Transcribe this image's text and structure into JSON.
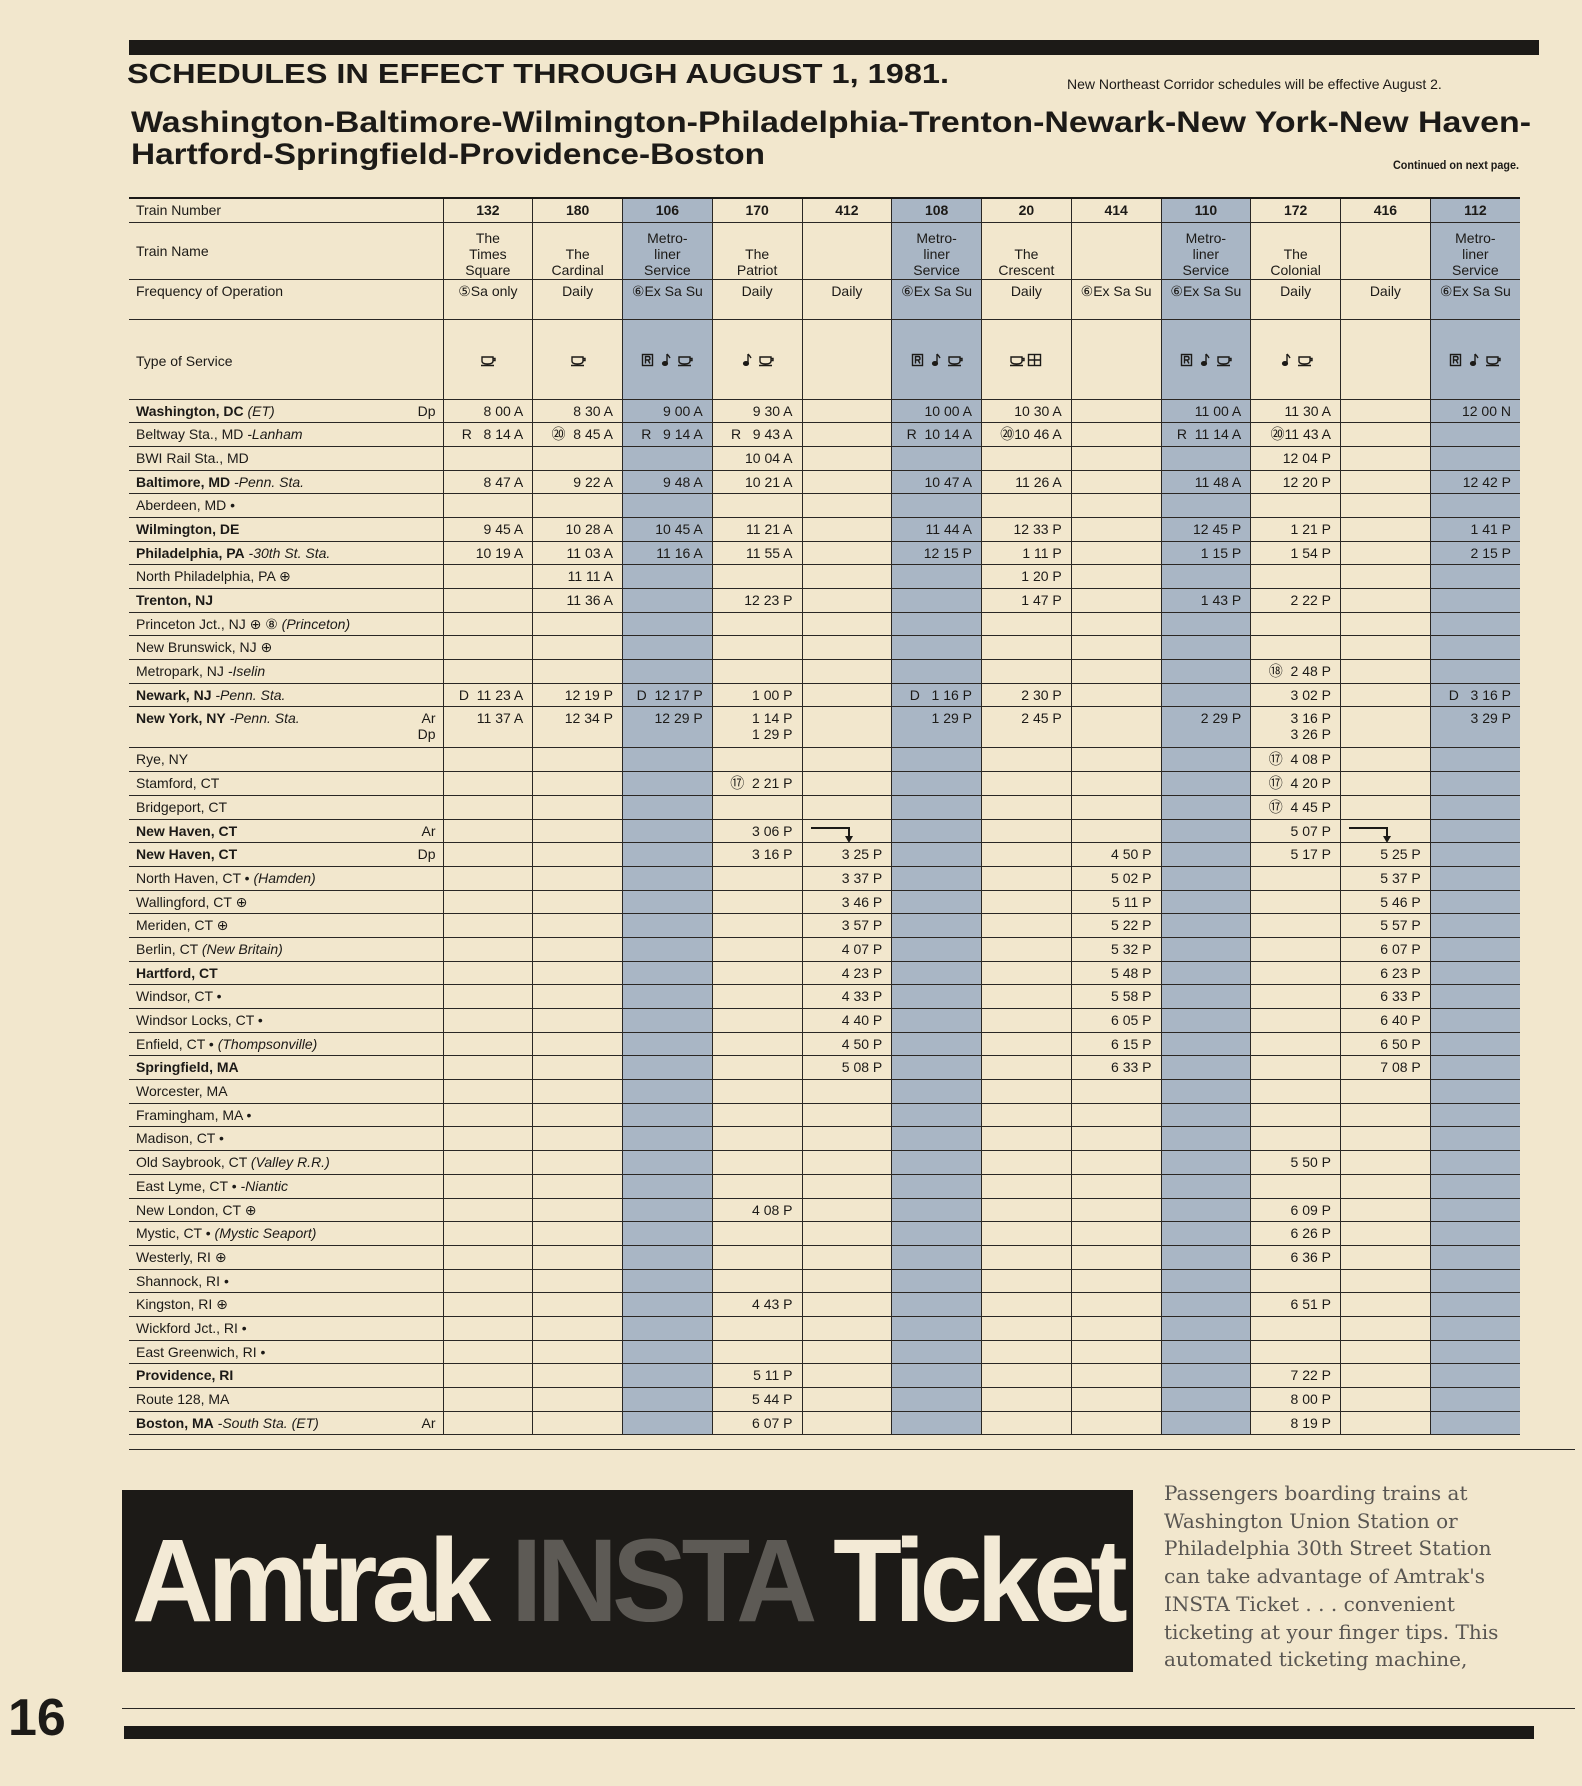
{
  "header": {
    "title": "SCHEDULES IN EFFECT THROUGH AUGUST 1, 1981.",
    "note": "New Northeast Corridor schedules will be effective August 2.",
    "route_line1": "Washington-Baltimore-Wilmington-Philadelphia-Trenton-Newark-New York-New Haven-",
    "route_line2": "Hartford-Springfield-Providence-Boston",
    "continued": "Continued on next page."
  },
  "table": {
    "row_labels": [
      "Train Number",
      "Train Name",
      "Frequency of Operation",
      "Type of Service"
    ],
    "trains": [
      {
        "number": "132",
        "name": "The\nTimes\nSquare",
        "frequency": "⑤Sa only"
      },
      {
        "number": "180",
        "name": "The\nCardinal",
        "frequency": "Daily"
      },
      {
        "number": "106",
        "name": "Metro-\nliner\nService",
        "frequency": "⑥Ex Sa Su",
        "shaded": true
      },
      {
        "number": "170",
        "name": "The\nPatriot",
        "frequency": "Daily"
      },
      {
        "number": "412",
        "name": null,
        "frequency": "Daily"
      },
      {
        "number": "108",
        "name": "Metro-\nliner\nService",
        "frequency": "⑥Ex Sa Su",
        "shaded": true
      },
      {
        "number": "20",
        "name": "The\nCrescent",
        "frequency": "Daily"
      },
      {
        "number": "414",
        "name": null,
        "frequency": "⑥Ex Sa Su"
      },
      {
        "number": "110",
        "name": "Metro-\nliner\nService",
        "frequency": "⑥Ex Sa Su",
        "shaded": true
      },
      {
        "number": "172",
        "name": "The\nColonial",
        "frequency": "Daily"
      },
      {
        "number": "416",
        "name": null,
        "frequency": "Daily"
      },
      {
        "number": "112",
        "name": "Metro-\nliner\nService",
        "frequency": "⑥Ex Sa Su",
        "shaded": true
      }
    ],
    "stations": [
      {
        "name": "Washington, DC",
        "note": "(ET)",
        "ad": "Dp",
        "bold": true,
        "times": [
          "8 00 A",
          "8 30 A",
          "9 00 A",
          "9 30 A",
          null,
          "10 00 A",
          "10 30 A",
          null,
          "11 00 A",
          "11 30 A",
          null,
          "12 00 N"
        ]
      },
      {
        "name": "Beltway Sta., MD",
        "note": "-Lanham",
        "times": [
          "R   8 14 A",
          "⑳  8 45 A",
          "R   9 14 A",
          "R   9 43 A",
          null,
          "R  10 14 A",
          "⑳10 46 A",
          null,
          "R  11 14 A",
          "⑳11 43 A",
          null,
          null
        ]
      },
      {
        "name": "BWI Rail Sta., MD",
        "times": [
          null,
          null,
          null,
          "10 04 A",
          null,
          null,
          null,
          null,
          null,
          "12 04 P",
          null,
          null
        ]
      },
      {
        "name": "Baltimore, MD",
        "note": "-Penn. Sta.",
        "bold": true,
        "times": [
          "8 47 A",
          "9 22 A",
          "9 48 A",
          "10 21 A",
          null,
          "10 47 A",
          "11 26 A",
          null,
          "11 48 A",
          "12 20 P",
          null,
          "12 42 P"
        ]
      },
      {
        "name": "Aberdeen, MD •",
        "times": [
          null,
          null,
          null,
          null,
          null,
          null,
          null,
          null,
          null,
          null,
          null,
          null
        ]
      },
      {
        "name": "Wilmington, DE",
        "bold": true,
        "times": [
          "9 45 A",
          "10 28 A",
          "10 45 A",
          "11 21 A",
          null,
          "11 44 A",
          "12 33 P",
          null,
          "12 45 P",
          "1 21 P",
          null,
          "1 41 P"
        ]
      },
      {
        "name": "Philadelphia, PA",
        "note": "-30th St. Sta.",
        "bold": true,
        "times": [
          "10 19 A",
          "11 03 A",
          "11 16 A",
          "11 55 A",
          null,
          "12 15 P",
          "1 11 P",
          null,
          "1 15 P",
          "1 54 P",
          null,
          "2 15 P"
        ]
      },
      {
        "name": "North Philadelphia, PA ⊕",
        "times": [
          null,
          "11 11 A",
          null,
          null,
          null,
          null,
          "1 20 P",
          null,
          null,
          null,
          null,
          null
        ]
      },
      {
        "name": "Trenton, NJ",
        "bold": true,
        "times": [
          null,
          "11 36 A",
          null,
          "12 23 P",
          null,
          null,
          "1 47 P",
          null,
          "1 43 P",
          "2 22 P",
          null,
          null
        ]
      },
      {
        "name": "Princeton Jct., NJ ⊕ ⑧",
        "note": "(Princeton)",
        "times": [
          null,
          null,
          null,
          null,
          null,
          null,
          null,
          null,
          null,
          null,
          null,
          null
        ]
      },
      {
        "name": "New Brunswick, NJ ⊕",
        "times": [
          null,
          null,
          null,
          null,
          null,
          null,
          null,
          null,
          null,
          null,
          null,
          null
        ]
      },
      {
        "name": "Metropark, NJ",
        "note": "-Iselin",
        "times": [
          null,
          null,
          null,
          null,
          null,
          null,
          null,
          null,
          null,
          "⑱  2 48 P",
          null,
          null
        ]
      },
      {
        "name": "Newark, NJ",
        "note": "-Penn. Sta.",
        "bold": true,
        "times": [
          "D  11 23 A",
          "12 19 P",
          "D  12 17 P",
          "1 00 P",
          null,
          "D   1 16 P",
          "2 30 P",
          null,
          null,
          "3 02 P",
          null,
          "D   3 16 P"
        ]
      },
      {
        "name": "New York, NY",
        "note": "-Penn. Sta.",
        "ad": "Ar\nDp",
        "bold": true,
        "times": [
          "11 37 A",
          "12 34 P",
          "12 29 P",
          "1 14 P\n1 29 P",
          null,
          "1 29 P",
          "2 45 P",
          null,
          "2 29 P",
          "3 16 P\n3 26 P",
          null,
          "3 29 P"
        ]
      },
      {
        "name": "Rye, NY",
        "times": [
          null,
          null,
          null,
          null,
          null,
          null,
          null,
          null,
          null,
          "⑰  4 08 P",
          null,
          null
        ]
      },
      {
        "name": "Stamford, CT",
        "times": [
          null,
          null,
          null,
          "⑰  2 21 P",
          null,
          null,
          null,
          null,
          null,
          "⑰  4 20 P",
          null,
          null
        ]
      },
      {
        "name": "Bridgeport, CT",
        "times": [
          null,
          null,
          null,
          null,
          null,
          null,
          null,
          null,
          null,
          "⑰  4 45 P",
          null,
          null
        ]
      },
      {
        "name": "New Haven, CT",
        "ad": "Ar",
        "bold": true,
        "times": [
          null,
          null,
          null,
          "3 06 P",
          null,
          null,
          null,
          null,
          null,
          "5 07 P",
          null,
          null
        ]
      },
      {
        "name": "New Haven, CT",
        "ad": "Dp",
        "bold": true,
        "times": [
          null,
          null,
          null,
          "3 16 P",
          "3 25 P",
          null,
          null,
          "4 50 P",
          null,
          "5 17 P",
          "5 25 P",
          null
        ]
      },
      {
        "name": "North Haven, CT •",
        "note": "(Hamden)",
        "times": [
          null,
          null,
          null,
          null,
          "3 37 P",
          null,
          null,
          "5 02 P",
          null,
          null,
          "5 37 P",
          null
        ]
      },
      {
        "name": "Wallingford, CT ⊕",
        "times": [
          null,
          null,
          null,
          null,
          "3 46 P",
          null,
          null,
          "5 11 P",
          null,
          null,
          "5 46 P",
          null
        ]
      },
      {
        "name": "Meriden, CT ⊕",
        "times": [
          null,
          null,
          null,
          null,
          "3 57 P",
          null,
          null,
          "5 22 P",
          null,
          null,
          "5 57 P",
          null
        ]
      },
      {
        "name": "Berlin, CT",
        "note": "(New Britain)",
        "times": [
          null,
          null,
          null,
          null,
          "4 07 P",
          null,
          null,
          "5 32 P",
          null,
          null,
          "6 07 P",
          null
        ]
      },
      {
        "name": "Hartford, CT",
        "bold": true,
        "times": [
          null,
          null,
          null,
          null,
          "4 23 P",
          null,
          null,
          "5 48 P",
          null,
          null,
          "6 23 P",
          null
        ]
      },
      {
        "name": "Windsor, CT •",
        "times": [
          null,
          null,
          null,
          null,
          "4 33 P",
          null,
          null,
          "5 58 P",
          null,
          null,
          "6 33 P",
          null
        ]
      },
      {
        "name": "Windsor Locks, CT •",
        "times": [
          null,
          null,
          null,
          null,
          "4 40 P",
          null,
          null,
          "6 05 P",
          null,
          null,
          "6 40 P",
          null
        ]
      },
      {
        "name": "Enfield, CT •",
        "note": "(Thompsonville)",
        "times": [
          null,
          null,
          null,
          null,
          "4 50 P",
          null,
          null,
          "6 15 P",
          null,
          null,
          "6 50 P",
          null
        ]
      },
      {
        "name": "Springfield, MA",
        "bold": true,
        "times": [
          null,
          null,
          null,
          null,
          "5 08 P",
          null,
          null,
          "6 33 P",
          null,
          null,
          "7 08 P",
          null
        ]
      },
      {
        "name": "Worcester, MA",
        "times": [
          null,
          null,
          null,
          null,
          null,
          null,
          null,
          null,
          null,
          null,
          null,
          null
        ]
      },
      {
        "name": "Framingham, MA •",
        "times": [
          null,
          null,
          null,
          null,
          null,
          null,
          null,
          null,
          null,
          null,
          null,
          null
        ]
      },
      {
        "name": "Madison, CT •",
        "times": [
          null,
          null,
          null,
          null,
          null,
          null,
          null,
          null,
          null,
          null,
          null,
          null
        ]
      },
      {
        "name": "Old Saybrook, CT",
        "note": "(Valley R.R.)",
        "times": [
          null,
          null,
          null,
          null,
          null,
          null,
          null,
          null,
          null,
          "5 50 P",
          null,
          null
        ]
      },
      {
        "name": "East Lyme, CT •",
        "note": "-Niantic",
        "times": [
          null,
          null,
          null,
          null,
          null,
          null,
          null,
          null,
          null,
          null,
          null,
          null
        ]
      },
      {
        "name": "New London, CT ⊕",
        "times": [
          null,
          null,
          null,
          "4 08 P",
          null,
          null,
          null,
          null,
          null,
          "6 09 P",
          null,
          null
        ]
      },
      {
        "name": "Mystic, CT •",
        "note": "(Mystic Seaport)",
        "times": [
          null,
          null,
          null,
          null,
          null,
          null,
          null,
          null,
          null,
          "6 26 P",
          null,
          null
        ]
      },
      {
        "name": "Westerly, RI ⊕",
        "times": [
          null,
          null,
          null,
          null,
          null,
          null,
          null,
          null,
          null,
          "6 36 P",
          null,
          null
        ]
      },
      {
        "name": "Shannock, RI •",
        "times": [
          null,
          null,
          null,
          null,
          null,
          null,
          null,
          null,
          null,
          null,
          null,
          null
        ]
      },
      {
        "name": "Kingston, RI ⊕",
        "times": [
          null,
          null,
          null,
          "4 43 P",
          null,
          null,
          null,
          null,
          null,
          "6 51 P",
          null,
          null
        ]
      },
      {
        "name": "Wickford Jct., RI •",
        "times": [
          null,
          null,
          null,
          null,
          null,
          null,
          null,
          null,
          null,
          null,
          null,
          null
        ]
      },
      {
        "name": "East Greenwich, RI •",
        "times": [
          null,
          null,
          null,
          null,
          null,
          null,
          null,
          null,
          null,
          null,
          null,
          null
        ]
      },
      {
        "name": "Providence, RI",
        "bold": true,
        "times": [
          null,
          null,
          null,
          "5 11 P",
          null,
          null,
          null,
          null,
          null,
          "7 22 P",
          null,
          null
        ]
      },
      {
        "name": "Route 128, MA",
        "times": [
          null,
          null,
          null,
          "5 44 P",
          null,
          null,
          null,
          null,
          null,
          "8 00 P",
          null,
          null
        ]
      },
      {
        "name": "Boston, MA",
        "note": "-South Sta. (ET)",
        "ad": "Ar",
        "bold": true,
        "times": [
          null,
          null,
          null,
          "6 07 P",
          null,
          null,
          null,
          null,
          null,
          "8 19 P",
          null,
          null
        ]
      }
    ]
  },
  "ad": {
    "brand": "Amtrak",
    "product": "INSTA",
    "word": "Ticket",
    "text_lines": [
      "Passengers boarding trains at",
      "Washington Union Station or",
      "Philadelphia 30th Street Station",
      "can take advantage of Amtrak's",
      "INSTA Ticket . . . convenient",
      "ticketing at your finger tips. This",
      "automated ticketing machine,"
    ]
  },
  "page_number": "16"
}
